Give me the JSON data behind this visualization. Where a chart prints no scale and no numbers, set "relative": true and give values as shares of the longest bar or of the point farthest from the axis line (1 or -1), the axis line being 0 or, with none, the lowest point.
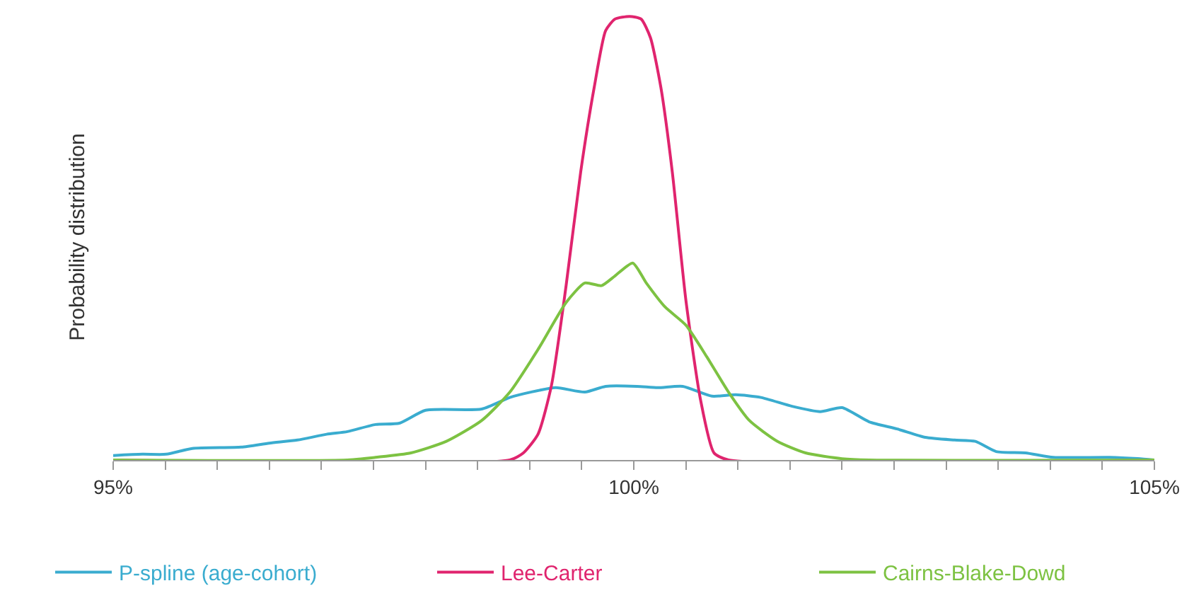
{
  "chart_data": {
    "type": "line",
    "relative": true,
    "ylabel": "Probability distribution",
    "xlim": [
      95,
      105
    ],
    "xticks": [
      {
        "value": 95,
        "label": "95%"
      },
      {
        "value": 95.5,
        "label": null
      },
      {
        "value": 96,
        "label": null
      },
      {
        "value": 96.5,
        "label": null
      },
      {
        "value": 97,
        "label": null
      },
      {
        "value": 97.5,
        "label": null
      },
      {
        "value": 98,
        "label": null
      },
      {
        "value": 98.5,
        "label": null
      },
      {
        "value": 99,
        "label": null
      },
      {
        "value": 99.5,
        "label": null
      },
      {
        "value": 100,
        "label": "100%"
      },
      {
        "value": 100.5,
        "label": null
      },
      {
        "value": 101,
        "label": null
      },
      {
        "value": 101.5,
        "label": null
      },
      {
        "value": 102,
        "label": null
      },
      {
        "value": 102.5,
        "label": null
      },
      {
        "value": 103,
        "label": null
      },
      {
        "value": 103.5,
        "label": null
      },
      {
        "value": 104,
        "label": null
      },
      {
        "value": 104.5,
        "label": null
      },
      {
        "value": 105,
        "label": "105%"
      }
    ],
    "legend": "bottom",
    "marker": "none",
    "line_style": "solid",
    "series": [
      {
        "name": "P-spline (age-cohort)",
        "color": "#3aaccf",
        "x": [
          95.0,
          95.28,
          95.51,
          95.76,
          96.23,
          96.5,
          96.77,
          97.05,
          97.25,
          97.52,
          97.75,
          98.0,
          98.54,
          98.81,
          99.01,
          99.25,
          99.53,
          99.73,
          100.03,
          100.23,
          100.47,
          100.75,
          100.98,
          101.22,
          101.52,
          101.79,
          102.0,
          102.26,
          102.53,
          102.8,
          103.08,
          103.28,
          103.48,
          103.76,
          104.03,
          104.57,
          104.84,
          105.0
        ],
        "values": [
          0.01,
          0.013,
          0.013,
          0.026,
          0.029,
          0.038,
          0.045,
          0.058,
          0.064,
          0.08,
          0.083,
          0.112,
          0.115,
          0.141,
          0.153,
          0.163,
          0.153,
          0.166,
          0.166,
          0.163,
          0.166,
          0.144,
          0.147,
          0.141,
          0.121,
          0.109,
          0.118,
          0.086,
          0.07,
          0.051,
          0.045,
          0.042,
          0.019,
          0.016,
          0.006,
          0.006,
          0.003,
          0.0
        ]
      },
      {
        "name": "Lee-Carter",
        "color": "#e0246e",
        "x": [
          95.0,
          98.81,
          98.94,
          99.08,
          99.21,
          99.35,
          99.49,
          99.62,
          99.73,
          99.82,
          99.96,
          100.07,
          100.16,
          100.26,
          100.37,
          100.5,
          100.64,
          100.77,
          100.91,
          105.0
        ],
        "values": [
          0,
          0,
          0.016,
          0.058,
          0.169,
          0.393,
          0.649,
          0.84,
          0.968,
          0.994,
          1,
          0.994,
          0.952,
          0.84,
          0.649,
          0.361,
          0.137,
          0.016,
          0,
          0
        ]
      },
      {
        "name": "Cairns-Blake-Dowd",
        "color": "#7dc242",
        "x": [
          95.0,
          97.25,
          97.52,
          97.86,
          98.2,
          98.54,
          98.81,
          99.08,
          99.35,
          99.53,
          99.69,
          99.82,
          99.99,
          100.12,
          100.3,
          100.5,
          100.7,
          100.91,
          101.11,
          101.38,
          101.65,
          102.0,
          102.26,
          105.0
        ],
        "values": [
          0,
          0,
          0.006,
          0.016,
          0.042,
          0.089,
          0.153,
          0.249,
          0.355,
          0.399,
          0.393,
          0.415,
          0.444,
          0.399,
          0.345,
          0.304,
          0.233,
          0.153,
          0.089,
          0.042,
          0.016,
          0.003,
          0,
          0
        ]
      }
    ]
  }
}
